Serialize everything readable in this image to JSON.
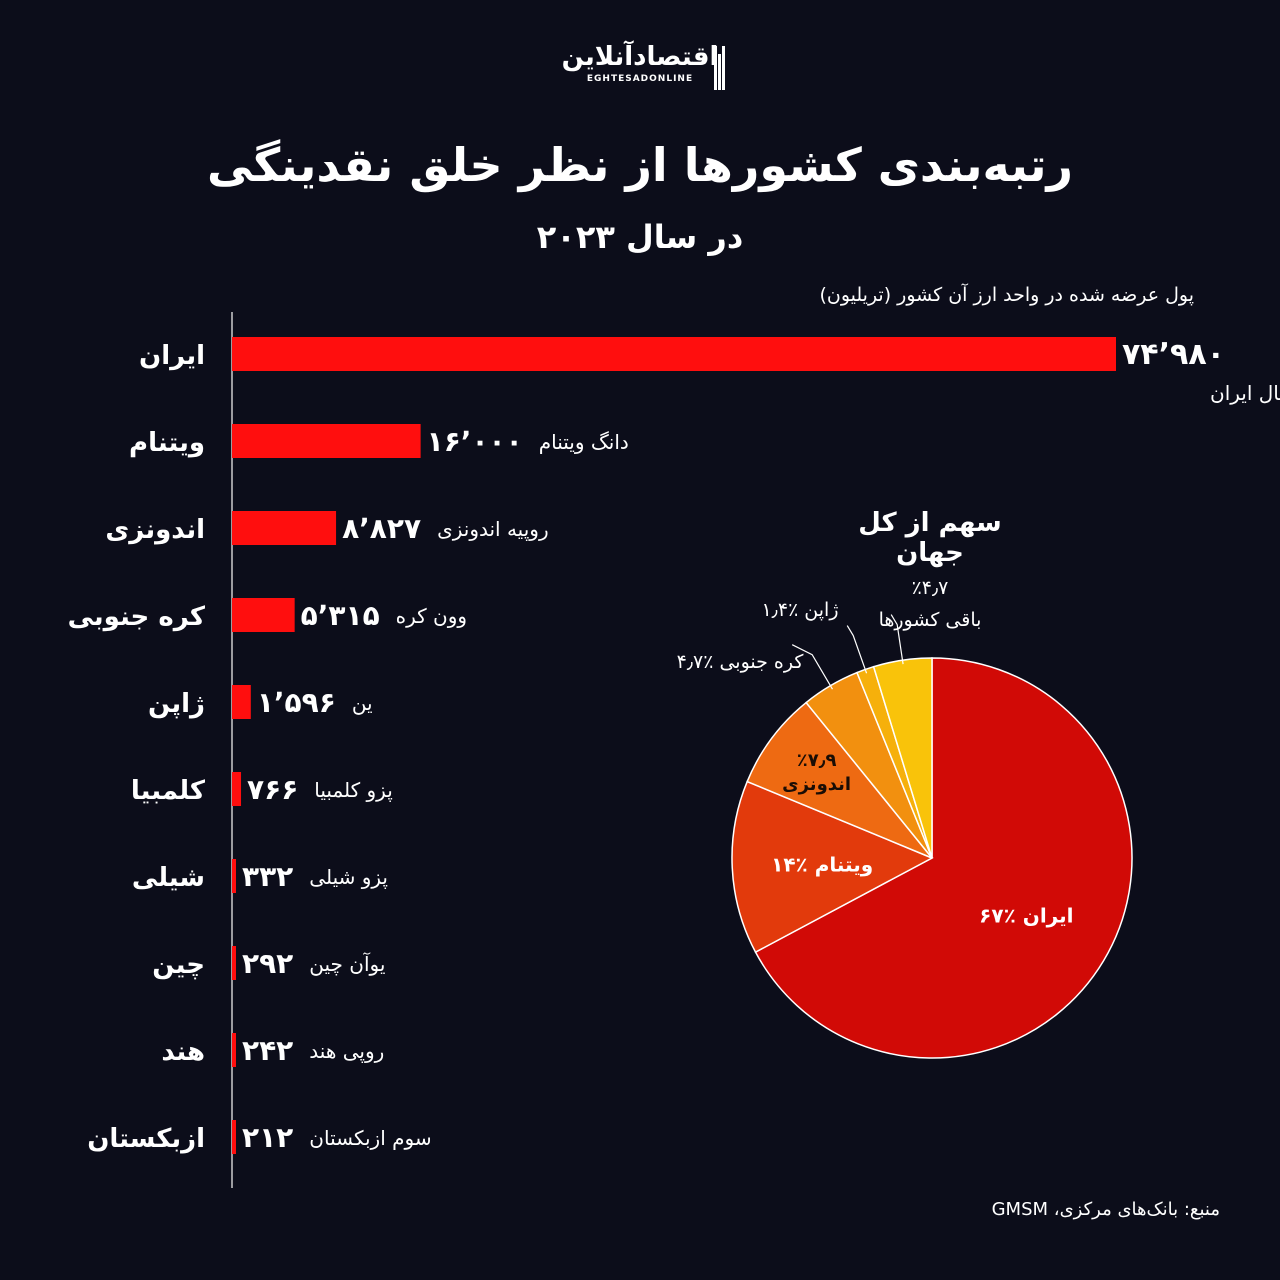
{
  "logo": {
    "fa": "اقتصادآنلاین",
    "en": "EGHTESADONLINE"
  },
  "title": "رتبه‌بندی کشورها از نظر خلق نقدینگی",
  "subtitle": "در سال ۲۰۲۳",
  "unit_note": "پول عرضه شده در واحد ارز آن کشور (تریلیون)",
  "pie_title": "سهم از کل جهان",
  "source": "منبع: بانک‌های مرکزی، GMSM",
  "colors": {
    "background": "#0c0d1a",
    "bar": "#ff0e0e",
    "pie": [
      "#d10a06",
      "#e23a0c",
      "#ee6a12",
      "#f2900f",
      "#f6b00b",
      "#f9c30a"
    ]
  },
  "chart_data": [
    {
      "type": "bar",
      "orientation": "horizontal",
      "categories": [
        "ایران",
        "ویتنام",
        "اندونزی",
        "کره جنوبی",
        "ژاپن",
        "کلمبیا",
        "شیلی",
        "چین",
        "هند",
        "ازبکستان"
      ],
      "values": [
        74980,
        16000,
        8827,
        5315,
        1596,
        766,
        332,
        292,
        242,
        212
      ],
      "value_labels": [
        "۷۴٬۹۸۰",
        "۱۶٬۰۰۰",
        "۸٬۸۲۷",
        "۵٬۳۱۵",
        "۱٬۵۹۶",
        "۷۶۶",
        "۳۳۲",
        "۲۹۲",
        "۲۴۲",
        "۲۱۲"
      ],
      "currencies": [
        "ریال ایران",
        "دانگ ویتنام",
        "روپیه اندونزی",
        "وون کره",
        "ین",
        "پزو کلمبیا",
        "پزو شیلی",
        "یوآن چین",
        "روپی هند",
        "سوم ازبکستان"
      ],
      "xlim": [
        0,
        74980
      ]
    },
    {
      "type": "pie",
      "labels": [
        "ایران",
        "ویتنام",
        "اندونزی",
        "کره جنوبی",
        "ژاپن",
        "باقی کشورها"
      ],
      "values": [
        67,
        14,
        7.9,
        4.7,
        1.4,
        4.7
      ],
      "value_labels": [
        "٪۶۷",
        "٪۱۴",
        "٪۷٫۹",
        "٪۴٫۷",
        "٪۱٫۴",
        "٪۴٫۷"
      ]
    }
  ]
}
